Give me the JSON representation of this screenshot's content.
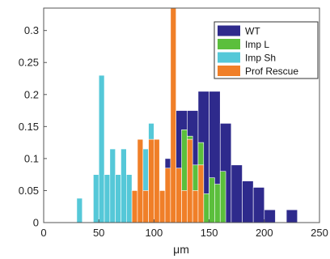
{
  "chart_data": {
    "type": "bar",
    "title": "",
    "xlabel": "μm",
    "ylabel": "",
    "xlim": [
      0,
      250
    ],
    "ylim": [
      0,
      0.335
    ],
    "xticks": [
      0,
      50,
      100,
      150,
      200,
      250
    ],
    "xtick_labels": [
      "0",
      "50",
      "100",
      "150",
      "200",
      "250"
    ],
    "yticks": [
      0,
      0.05,
      0.1,
      0.15,
      0.2,
      0.25,
      0.3
    ],
    "ytick_labels": [
      "0",
      "0.05",
      "0.1",
      "0.15",
      "0.2",
      "0.25",
      "0.3"
    ],
    "grid": false,
    "legend_position": "top-right",
    "series": [
      {
        "name": "WT",
        "color": "#2e2a8c",
        "bin_width": 10,
        "bins": [
          [
            110,
            0.1
          ],
          [
            120,
            0.175
          ],
          [
            130,
            0.175
          ],
          [
            140,
            0.205
          ],
          [
            150,
            0.205
          ],
          [
            160,
            0.155
          ],
          [
            170,
            0.09
          ],
          [
            180,
            0.065
          ],
          [
            190,
            0.055
          ],
          [
            200,
            0.02
          ],
          [
            220,
            0.02
          ]
        ]
      },
      {
        "name": "Imp L",
        "color": "#5bbf3c",
        "bin_width": 5,
        "bins": [
          [
            120,
            0.085
          ],
          [
            125,
            0.145
          ],
          [
            130,
            0.135
          ],
          [
            135,
            0.09
          ],
          [
            140,
            0.125
          ],
          [
            145,
            0.045
          ],
          [
            150,
            0.07
          ],
          [
            155,
            0.06
          ],
          [
            160,
            0.08
          ]
        ]
      },
      {
        "name": "Imp Sh",
        "color": "#55c8d8",
        "bin_width": 5,
        "bins": [
          [
            30,
            0.038
          ],
          [
            45,
            0.075
          ],
          [
            50,
            0.23
          ],
          [
            55,
            0.075
          ],
          [
            60,
            0.115
          ],
          [
            65,
            0.075
          ],
          [
            70,
            0.115
          ],
          [
            75,
            0.075
          ],
          [
            90,
            0.115
          ],
          [
            95,
            0.155
          ],
          [
            100,
            0.115
          ]
        ]
      },
      {
        "name": "Prof Rescue",
        "color": "#f07f28",
        "bin_width": 5,
        "bins": [
          [
            80,
            0.05
          ],
          [
            85,
            0.13
          ],
          [
            90,
            0.05
          ],
          [
            95,
            0.13
          ],
          [
            100,
            0.13
          ],
          [
            105,
            0.05
          ],
          [
            110,
            0.085
          ],
          [
            115,
            0.335
          ],
          [
            120,
            0.085
          ],
          [
            125,
            0.05
          ],
          [
            130,
            0.13
          ],
          [
            135,
            0.05
          ],
          [
            140,
            0.09
          ]
        ]
      }
    ]
  }
}
